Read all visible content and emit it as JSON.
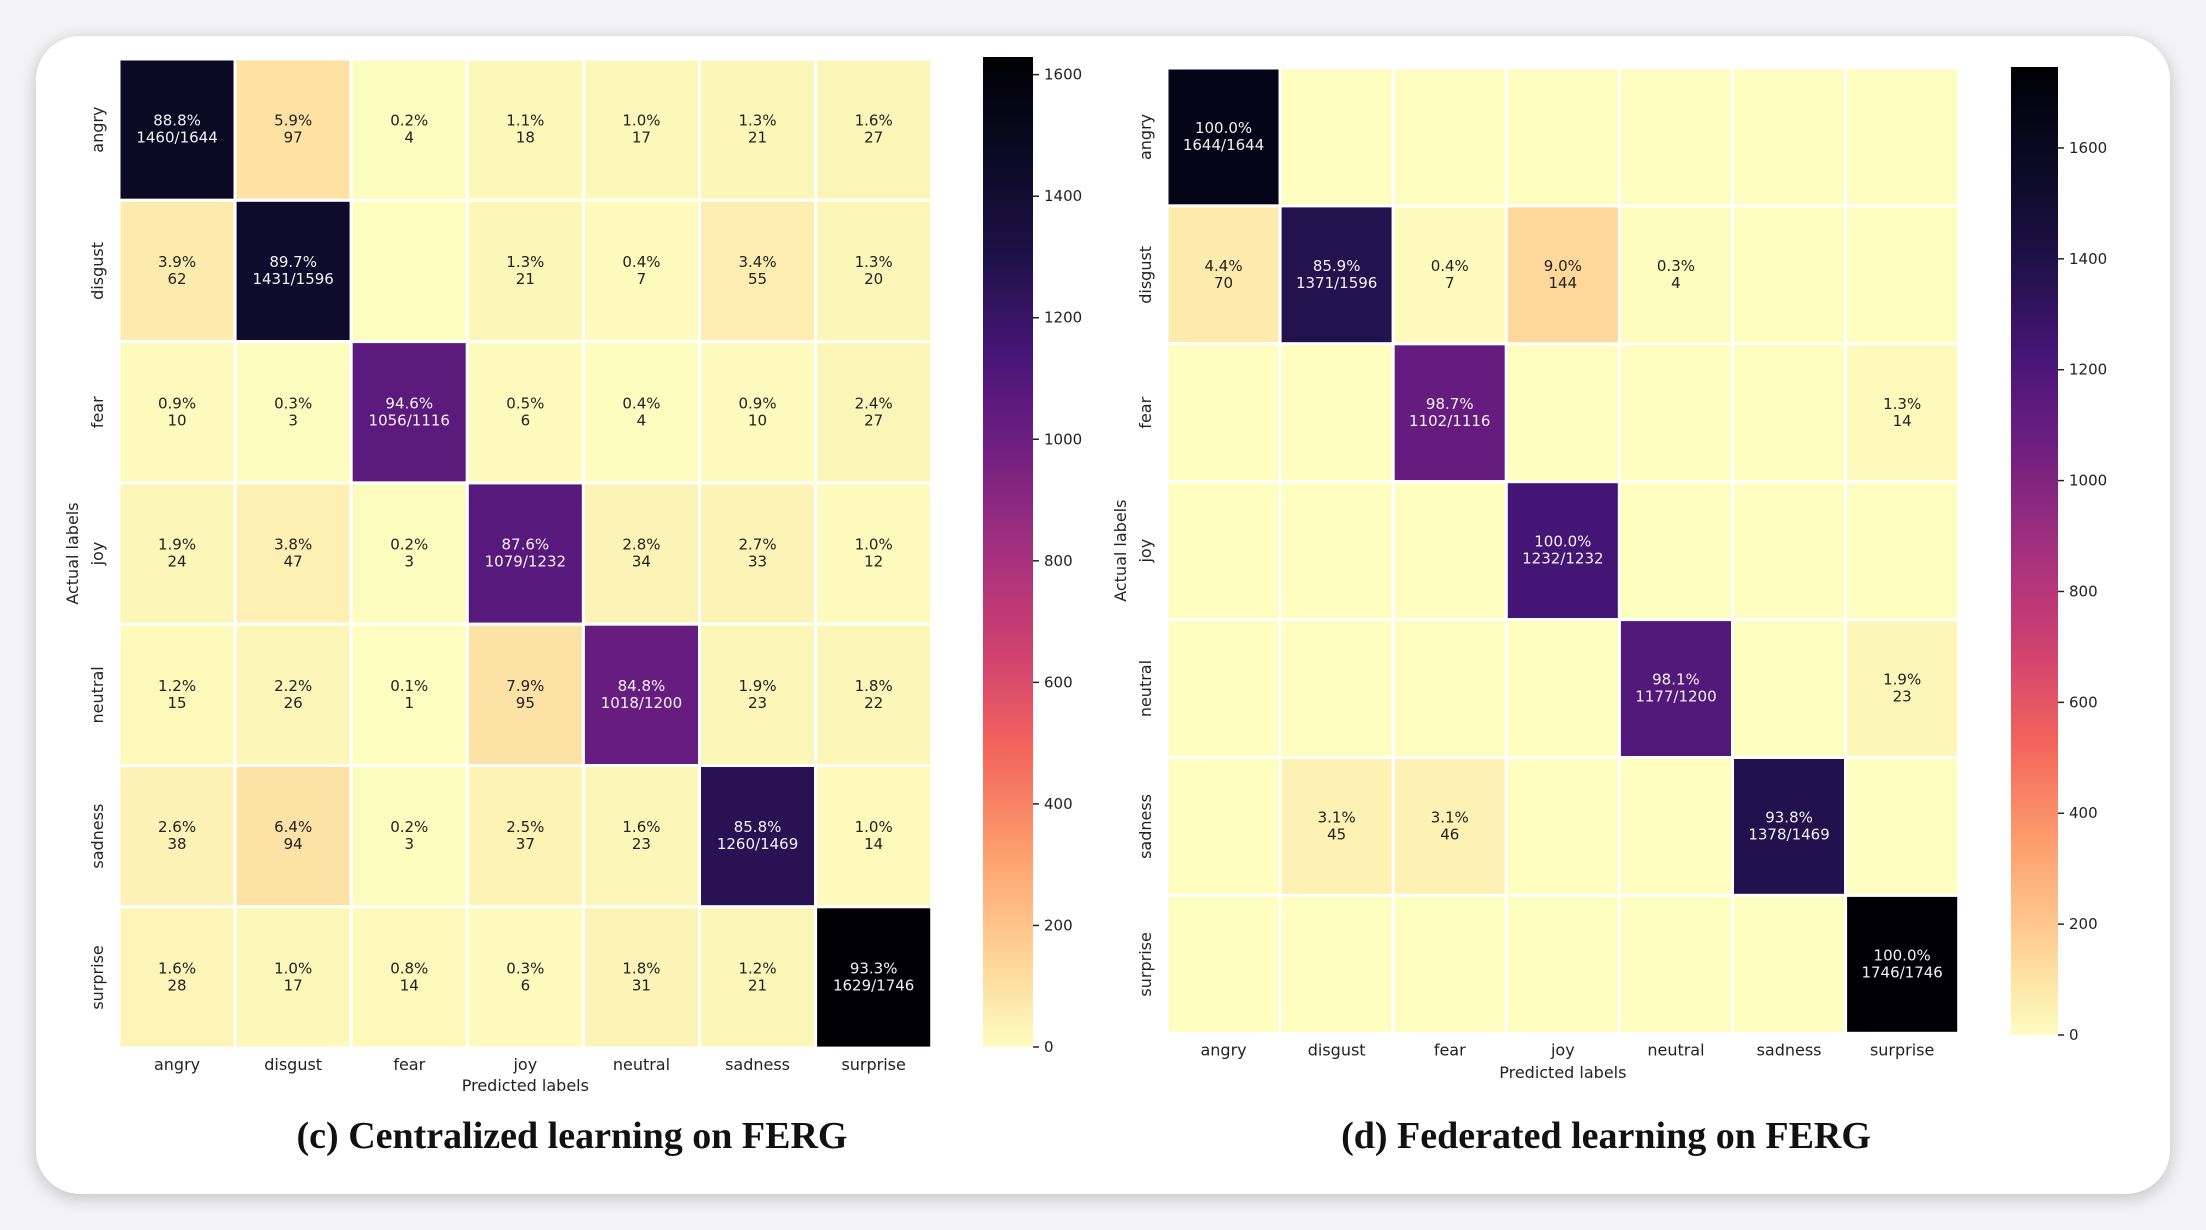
{
  "captions": {
    "left": "(c) Centralized learning on FERG",
    "right": "(d) Federated learning on FERG"
  },
  "colormap": {
    "name": "magma_r",
    "stops": [
      "#fcfdbf",
      "#fecf92",
      "#fd9d6d",
      "#f3655c",
      "#cf4070",
      "#a3307e",
      "#721f81",
      "#471578",
      "#1d1147",
      "#0b0924",
      "#000004"
    ]
  },
  "chart_data": [
    {
      "type": "heatmap",
      "labels": [
        "angry",
        "disgust",
        "fear",
        "joy",
        "neutral",
        "sadness",
        "surprise"
      ],
      "xlabel": "Predicted labels",
      "ylabel": "Actual labels",
      "counts": [
        [
          1460,
          97,
          4,
          18,
          17,
          21,
          27
        ],
        [
          62,
          1431,
          0,
          21,
          7,
          55,
          20
        ],
        [
          10,
          3,
          1056,
          6,
          4,
          10,
          27
        ],
        [
          24,
          47,
          3,
          1079,
          34,
          33,
          12
        ],
        [
          15,
          26,
          1,
          95,
          1018,
          23,
          22
        ],
        [
          38,
          94,
          3,
          37,
          23,
          1260,
          14
        ],
        [
          28,
          17,
          14,
          6,
          31,
          21,
          1629
        ]
      ],
      "annotations": [
        [
          "88.8%\n1460/1644",
          "5.9%\n97",
          "0.2%\n4",
          "1.1%\n18",
          "1.0%\n17",
          "1.3%\n21",
          "1.6%\n27"
        ],
        [
          "3.9%\n62",
          "89.7%\n1431/1596",
          "",
          "1.3%\n21",
          "0.4%\n7",
          "3.4%\n55",
          "1.3%\n20"
        ],
        [
          "0.9%\n10",
          "0.3%\n3",
          "94.6%\n1056/1116",
          "0.5%\n6",
          "0.4%\n4",
          "0.9%\n10",
          "2.4%\n27"
        ],
        [
          "1.9%\n24",
          "3.8%\n47",
          "0.2%\n3",
          "87.6%\n1079/1232",
          "2.8%\n34",
          "2.7%\n33",
          "1.0%\n12"
        ],
        [
          "1.2%\n15",
          "2.2%\n26",
          "0.1%\n1",
          "7.9%\n95",
          "84.8%\n1018/1200",
          "1.9%\n23",
          "1.8%\n22"
        ],
        [
          "2.6%\n38",
          "6.4%\n94",
          "0.2%\n3",
          "2.5%\n37",
          "1.6%\n23",
          "85.8%\n1260/1469",
          "1.0%\n14"
        ],
        [
          "1.6%\n28",
          "1.0%\n17",
          "0.8%\n14",
          "0.3%\n6",
          "1.8%\n31",
          "1.2%\n21",
          "93.3%\n1629/1746"
        ]
      ],
      "colorbar": {
        "vmin": 0,
        "vmax": 1629,
        "ticks": [
          0,
          200,
          400,
          600,
          800,
          1000,
          1200,
          1400,
          1600
        ]
      }
    },
    {
      "type": "heatmap",
      "labels": [
        "angry",
        "disgust",
        "fear",
        "joy",
        "neutral",
        "sadness",
        "surprise"
      ],
      "xlabel": "Predicted labels",
      "ylabel": "Actual labels",
      "counts": [
        [
          1644,
          0,
          0,
          0,
          0,
          0,
          0
        ],
        [
          70,
          1371,
          7,
          144,
          4,
          0,
          0
        ],
        [
          0,
          0,
          1102,
          0,
          0,
          0,
          14
        ],
        [
          0,
          0,
          0,
          1232,
          0,
          0,
          0
        ],
        [
          0,
          0,
          0,
          0,
          1177,
          0,
          23
        ],
        [
          0,
          45,
          46,
          0,
          0,
          1378,
          0
        ],
        [
          0,
          0,
          0,
          0,
          0,
          0,
          1746
        ]
      ],
      "annotations": [
        [
          "100.0%\n1644/1644",
          "",
          "",
          "",
          "",
          "",
          ""
        ],
        [
          "4.4%\n70",
          "85.9%\n1371/1596",
          "0.4%\n7",
          "9.0%\n144",
          "0.3%\n4",
          "",
          ""
        ],
        [
          "",
          "",
          "98.7%\n1102/1116",
          "",
          "",
          "",
          "1.3%\n14"
        ],
        [
          "",
          "",
          "",
          "100.0%\n1232/1232",
          "",
          "",
          ""
        ],
        [
          "",
          "",
          "",
          "",
          "98.1%\n1177/1200",
          "",
          "1.9%\n23"
        ],
        [
          "",
          "3.1%\n45",
          "3.1%\n46",
          "",
          "",
          "93.8%\n1378/1469",
          ""
        ],
        [
          "",
          "",
          "",
          "",
          "",
          "",
          "100.0%\n1746/1746"
        ]
      ],
      "colorbar": {
        "vmin": 0,
        "vmax": 1746,
        "ticks": [
          0,
          200,
          400,
          600,
          800,
          1000,
          1200,
          1400,
          1600
        ]
      }
    }
  ]
}
